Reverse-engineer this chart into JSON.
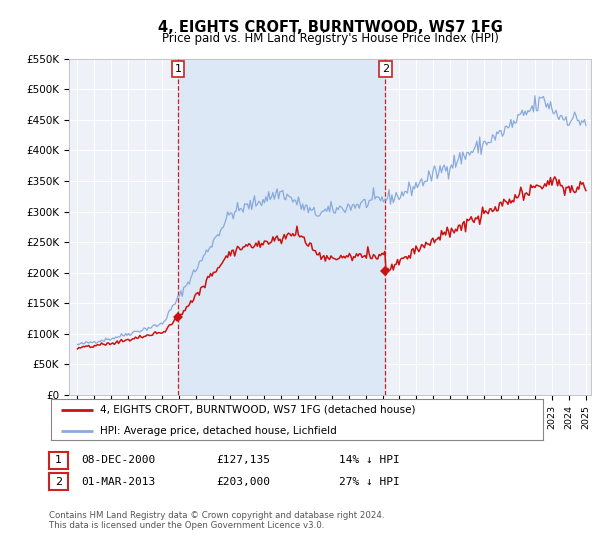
{
  "title": "4, EIGHTS CROFT, BURNTWOOD, WS7 1FG",
  "subtitle": "Price paid vs. HM Land Registry's House Price Index (HPI)",
  "ylim": [
    0,
    550000
  ],
  "yticks": [
    0,
    50000,
    100000,
    150000,
    200000,
    250000,
    300000,
    350000,
    400000,
    450000,
    500000,
    550000
  ],
  "ytick_labels": [
    "£0",
    "£50K",
    "£100K",
    "£150K",
    "£200K",
    "£250K",
    "£300K",
    "£350K",
    "£400K",
    "£450K",
    "£500K",
    "£550K"
  ],
  "background_color": "#ffffff",
  "plot_bg_color": "#eef2f8",
  "grid_color": "#ffffff",
  "sale1_date": 2000.93,
  "sale1_price": 127135,
  "sale2_date": 2013.17,
  "sale2_price": 203000,
  "vline_color": "#cc2222",
  "shade_color": "#dce8f5",
  "red_line_color": "#cc1111",
  "blue_line_color": "#88aadd",
  "legend_label1": "4, EIGHTS CROFT, BURNTWOOD, WS7 1FG (detached house)",
  "legend_label2": "HPI: Average price, detached house, Lichfield",
  "table_row1": [
    "1",
    "08-DEC-2000",
    "£127,135",
    "14% ↓ HPI"
  ],
  "table_row2": [
    "2",
    "01-MAR-2013",
    "£203,000",
    "27% ↓ HPI"
  ],
  "footer1": "Contains HM Land Registry data © Crown copyright and database right 2024.",
  "footer2": "This data is licensed under the Open Government Licence v3.0.",
  "xmin": 1994.5,
  "xmax": 2025.3
}
